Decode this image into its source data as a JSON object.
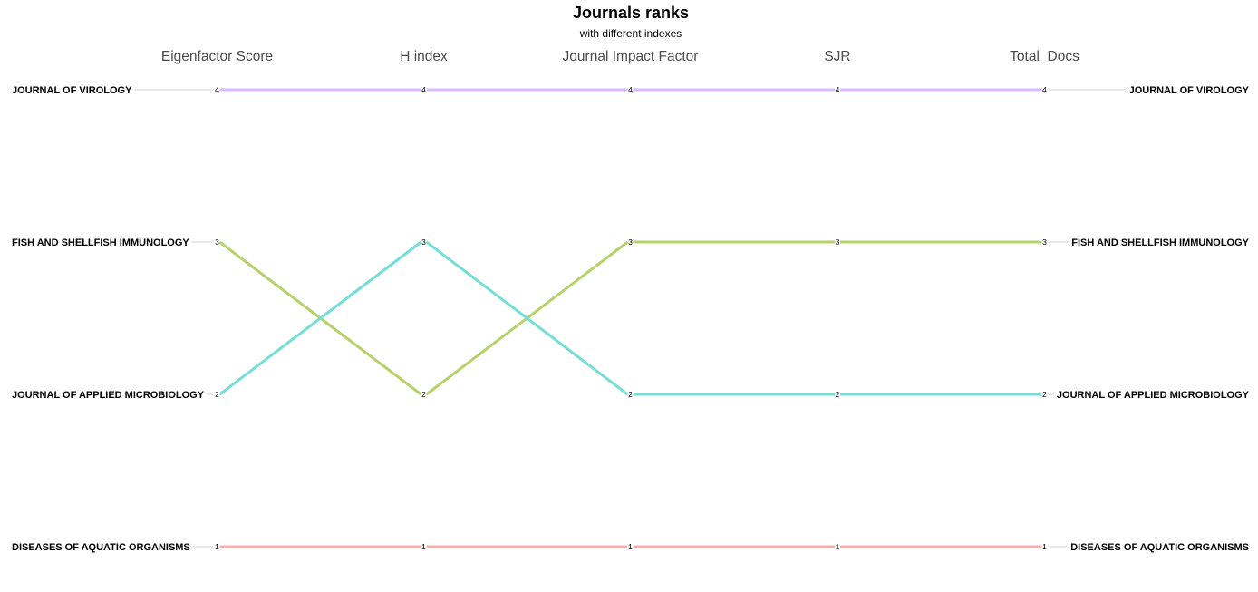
{
  "chart_data": {
    "type": "line",
    "title": "Journals ranks",
    "subtitle": "with different indexes",
    "categories": [
      "Eigenfactor Score",
      "H index",
      "Journal Impact Factor",
      "SJR",
      "Total_Docs"
    ],
    "ylim": [
      1,
      4
    ],
    "grid": false,
    "legend": "none",
    "series": [
      {
        "name": "JOURNAL OF VIROLOGY",
        "values": [
          4,
          4,
          4,
          4,
          4
        ],
        "color": "#D9B8FF"
      },
      {
        "name": "FISH AND SHELLFISH IMMUNOLOGY",
        "values": [
          3,
          2,
          3,
          3,
          3
        ],
        "color": "#B5D26B"
      },
      {
        "name": "JOURNAL OF APPLIED MICROBIOLOGY",
        "values": [
          2,
          3,
          2,
          2,
          2
        ],
        "color": "#74DED7"
      },
      {
        "name": "DISEASES OF AQUATIC ORGANISMS",
        "values": [
          1,
          1,
          1,
          1,
          1
        ],
        "color": "#F6AFAB"
      }
    ]
  }
}
